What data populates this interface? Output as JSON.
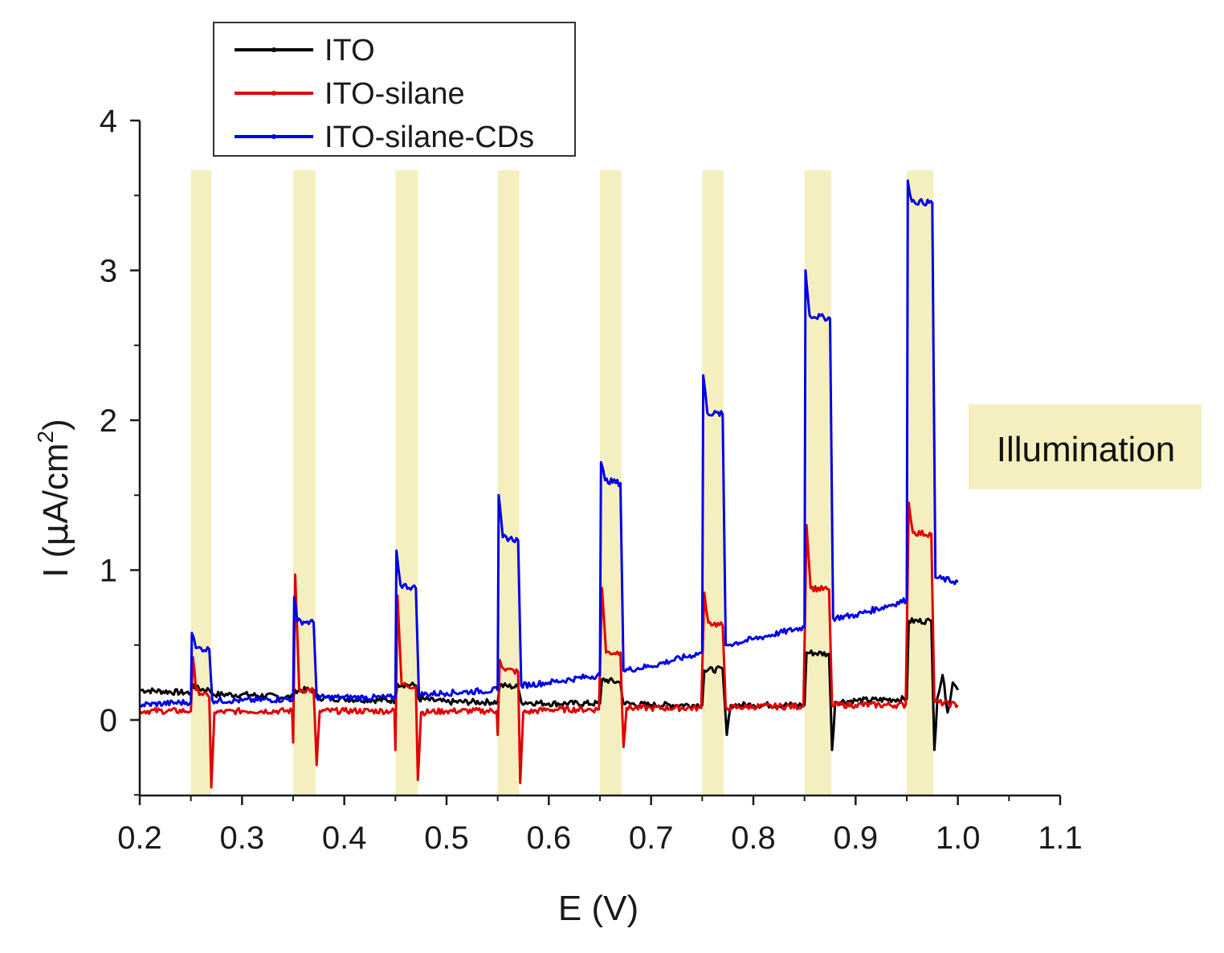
{
  "chart_data": {
    "type": "line",
    "title": "",
    "xlabel": "E (V)",
    "ylabel": {
      "prefix": "I (",
      "mu": "μ",
      "unit": "A/cm",
      "sup": "2",
      "suffix": ")"
    },
    "xlim": [
      0.2,
      1.1
    ],
    "ylim": [
      -0.5,
      4
    ],
    "x_ticks": [
      "0.2",
      "0.3",
      "0.4",
      "0.5",
      "0.6",
      "0.7",
      "0.8",
      "0.9",
      "1.0",
      "1.1"
    ],
    "x_tick_values": [
      0.2,
      0.3,
      0.4,
      0.5,
      0.6,
      0.7,
      0.8,
      0.9,
      1.0,
      1.1
    ],
    "y_ticks": [
      "0",
      "1",
      "2",
      "3",
      "4"
    ],
    "y_tick_values": [
      0,
      1,
      2,
      3,
      4
    ],
    "grid": false,
    "legend_position": "top-left",
    "illumination_label": "Illumination",
    "illumination_color": "#f5efbf",
    "illumination_windows": [
      [
        0.25,
        0.27
      ],
      [
        0.35,
        0.372
      ],
      [
        0.45,
        0.472
      ],
      [
        0.55,
        0.571
      ],
      [
        0.65,
        0.671
      ],
      [
        0.75,
        0.771
      ],
      [
        0.85,
        0.876
      ],
      [
        0.95,
        0.976
      ]
    ],
    "series": [
      {
        "name": "ITO",
        "color": "#000000",
        "points": [
          [
            0.2,
            0.2
          ],
          [
            0.25,
            0.18
          ],
          [
            0.252,
            0.24
          ],
          [
            0.255,
            0.21
          ],
          [
            0.268,
            0.2
          ],
          [
            0.272,
            0.17
          ],
          [
            0.3,
            0.17
          ],
          [
            0.35,
            0.15
          ],
          [
            0.352,
            0.2
          ],
          [
            0.37,
            0.2
          ],
          [
            0.373,
            0.15
          ],
          [
            0.4,
            0.14
          ],
          [
            0.45,
            0.13
          ],
          [
            0.452,
            0.24
          ],
          [
            0.47,
            0.23
          ],
          [
            0.473,
            0.14
          ],
          [
            0.5,
            0.12
          ],
          [
            0.55,
            0.12
          ],
          [
            0.552,
            0.23
          ],
          [
            0.57,
            0.22
          ],
          [
            0.573,
            0.12
          ],
          [
            0.6,
            0.11
          ],
          [
            0.65,
            0.11
          ],
          [
            0.652,
            0.27
          ],
          [
            0.67,
            0.25
          ],
          [
            0.673,
            0.11
          ],
          [
            0.7,
            0.1
          ],
          [
            0.75,
            0.1
          ],
          [
            0.752,
            0.33
          ],
          [
            0.77,
            0.34
          ],
          [
            0.774,
            -0.1
          ],
          [
            0.778,
            0.1
          ],
          [
            0.8,
            0.1
          ],
          [
            0.85,
            0.1
          ],
          [
            0.852,
            0.45
          ],
          [
            0.874,
            0.44
          ],
          [
            0.877,
            -0.2
          ],
          [
            0.88,
            0.12
          ],
          [
            0.9,
            0.13
          ],
          [
            0.95,
            0.14
          ],
          [
            0.952,
            0.66
          ],
          [
            0.974,
            0.66
          ],
          [
            0.977,
            -0.2
          ],
          [
            0.98,
            0.15
          ],
          [
            0.985,
            0.3
          ],
          [
            0.99,
            0.05
          ],
          [
            0.995,
            0.25
          ],
          [
            1.0,
            0.2
          ]
        ]
      },
      {
        "name": "ITO-silane",
        "color": "#e00000",
        "points": [
          [
            0.2,
            0.06
          ],
          [
            0.25,
            0.06
          ],
          [
            0.252,
            0.42
          ],
          [
            0.255,
            0.2
          ],
          [
            0.268,
            0.15
          ],
          [
            0.27,
            -0.45
          ],
          [
            0.273,
            0.05
          ],
          [
            0.3,
            0.06
          ],
          [
            0.349,
            0.06
          ],
          [
            0.35,
            -0.15
          ],
          [
            0.352,
            0.97
          ],
          [
            0.356,
            0.2
          ],
          [
            0.37,
            0.2
          ],
          [
            0.373,
            -0.3
          ],
          [
            0.376,
            0.06
          ],
          [
            0.4,
            0.06
          ],
          [
            0.449,
            0.06
          ],
          [
            0.45,
            -0.2
          ],
          [
            0.452,
            0.83
          ],
          [
            0.456,
            0.24
          ],
          [
            0.47,
            0.22
          ],
          [
            0.472,
            -0.4
          ],
          [
            0.475,
            0.05
          ],
          [
            0.5,
            0.06
          ],
          [
            0.549,
            0.06
          ],
          [
            0.55,
            -0.1
          ],
          [
            0.552,
            0.4
          ],
          [
            0.556,
            0.34
          ],
          [
            0.57,
            0.32
          ],
          [
            0.572,
            -0.42
          ],
          [
            0.575,
            0.05
          ],
          [
            0.6,
            0.07
          ],
          [
            0.649,
            0.07
          ],
          [
            0.652,
            0.88
          ],
          [
            0.656,
            0.45
          ],
          [
            0.67,
            0.45
          ],
          [
            0.673,
            -0.18
          ],
          [
            0.676,
            0.08
          ],
          [
            0.7,
            0.08
          ],
          [
            0.749,
            0.08
          ],
          [
            0.752,
            0.85
          ],
          [
            0.756,
            0.65
          ],
          [
            0.77,
            0.63
          ],
          [
            0.773,
            0.08
          ],
          [
            0.8,
            0.09
          ],
          [
            0.849,
            0.09
          ],
          [
            0.852,
            1.3
          ],
          [
            0.856,
            0.88
          ],
          [
            0.874,
            0.87
          ],
          [
            0.877,
            0.1
          ],
          [
            0.9,
            0.1
          ],
          [
            0.949,
            0.1
          ],
          [
            0.952,
            1.45
          ],
          [
            0.956,
            1.25
          ],
          [
            0.974,
            1.24
          ],
          [
            0.977,
            0.12
          ],
          [
            1.0,
            0.1
          ]
        ]
      },
      {
        "name": "ITO-silane-CDs",
        "color": "#0000e6",
        "points": [
          [
            0.2,
            0.1
          ],
          [
            0.25,
            0.12
          ],
          [
            0.251,
            0.58
          ],
          [
            0.255,
            0.48
          ],
          [
            0.268,
            0.47
          ],
          [
            0.271,
            0.13
          ],
          [
            0.3,
            0.13
          ],
          [
            0.35,
            0.14
          ],
          [
            0.351,
            0.82
          ],
          [
            0.354,
            0.66
          ],
          [
            0.37,
            0.65
          ],
          [
            0.373,
            0.15
          ],
          [
            0.4,
            0.15
          ],
          [
            0.45,
            0.15
          ],
          [
            0.451,
            1.13
          ],
          [
            0.455,
            0.9
          ],
          [
            0.47,
            0.88
          ],
          [
            0.473,
            0.17
          ],
          [
            0.5,
            0.18
          ],
          [
            0.55,
            0.2
          ],
          [
            0.551,
            1.5
          ],
          [
            0.555,
            1.22
          ],
          [
            0.57,
            1.2
          ],
          [
            0.573,
            0.23
          ],
          [
            0.6,
            0.25
          ],
          [
            0.65,
            0.3
          ],
          [
            0.651,
            1.72
          ],
          [
            0.655,
            1.6
          ],
          [
            0.67,
            1.58
          ],
          [
            0.673,
            0.33
          ],
          [
            0.7,
            0.36
          ],
          [
            0.75,
            0.45
          ],
          [
            0.751,
            2.3
          ],
          [
            0.755,
            2.05
          ],
          [
            0.77,
            2.04
          ],
          [
            0.773,
            0.5
          ],
          [
            0.8,
            0.54
          ],
          [
            0.85,
            0.62
          ],
          [
            0.851,
            3.0
          ],
          [
            0.855,
            2.7
          ],
          [
            0.875,
            2.68
          ],
          [
            0.878,
            0.68
          ],
          [
            0.9,
            0.7
          ],
          [
            0.95,
            0.8
          ],
          [
            0.951,
            3.6
          ],
          [
            0.955,
            3.46
          ],
          [
            0.975,
            3.45
          ],
          [
            0.978,
            0.95
          ],
          [
            1.0,
            0.92
          ]
        ]
      }
    ]
  }
}
